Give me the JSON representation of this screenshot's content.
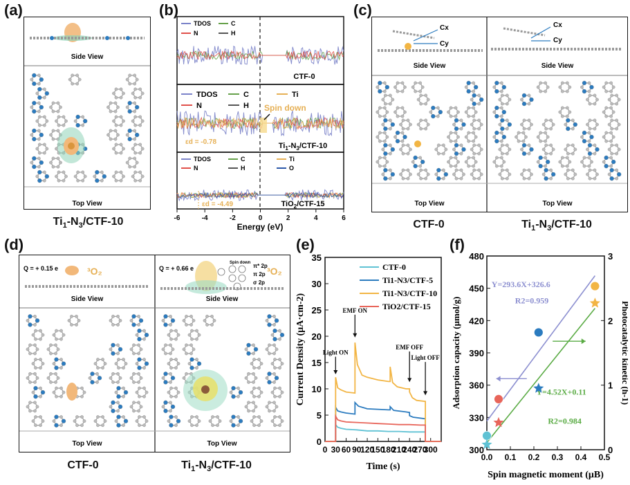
{
  "panels": {
    "a": {
      "label": "(a)",
      "side_view": "Side View",
      "top_view": "Top View",
      "caption": "Ti1-N3/CTF-10"
    },
    "b": {
      "label": "(b)",
      "xlabel": "Energy (eV)",
      "x_ticks": [
        "-6",
        "-4",
        "-2",
        "0",
        "2",
        "4",
        "6"
      ],
      "sub1": {
        "legend": [
          "TDOS",
          "C",
          "N",
          "H"
        ],
        "name": "CTF-0"
      },
      "sub2": {
        "legend": [
          "TDOS",
          "C",
          "Ti",
          "N",
          "H"
        ],
        "name": "Ti1-N3/CTF-10",
        "spin": "Spin down",
        "ed": "εd = -0.78"
      },
      "sub3": {
        "legend": [
          "TDOS",
          "C",
          "Ti",
          "N",
          "H",
          "O"
        ],
        "name": "TiO2/CTF-15",
        "ed": "εd = -4.49"
      }
    },
    "c": {
      "label": "(c)",
      "side_view": "Side View",
      "top_view": "Top View",
      "cx": "Cx",
      "cy": "Cy",
      "caption_left": "CTF-0",
      "caption_right": "Ti1-N3/CTF-10"
    },
    "d": {
      "label": "(d)",
      "q_left": "Q = + 0.15 e",
      "q_right": "Q = + 0.66 e",
      "o2": "3O2",
      "spin_down": "Spin down",
      "orbitals": [
        "π* 2p",
        "π 2p",
        "σ 2p"
      ],
      "side_view": "Side View",
      "top_view": "Top View",
      "caption_left": "CTF-0",
      "caption_right": "Ti1-N3/CTF-10"
    },
    "e": {
      "label": "(e)"
    },
    "f": {
      "label": "(f)"
    }
  },
  "colors": {
    "tdos": "#7b83c9",
    "c": "#66a14a",
    "ti": "#e6b055",
    "n": "#e0504a",
    "h": "#555555",
    "o": "#2b57a8",
    "ctf0": "#5fc2d4",
    "ctf5": "#2b7bbf",
    "ctf10": "#f2b544",
    "tio2": "#e8655a",
    "fit_blue": "#8c8fd0",
    "fit_green": "#5aab44"
  },
  "chart_data": [
    {
      "type": "line",
      "title": "",
      "xlabel": "Time (s)",
      "ylabel": "Current Density (μA·cm-2)",
      "xlim": [
        0,
        330
      ],
      "ylim": [
        0,
        35
      ],
      "x_ticks": [
        0,
        30,
        60,
        90,
        120,
        150,
        180,
        210,
        240,
        270,
        300
      ],
      "y_ticks": [
        0,
        5,
        10,
        15,
        20,
        25,
        30,
        35
      ],
      "legend": "top-right",
      "series": [
        {
          "name": "CTF-0",
          "color": "#5fc2d4",
          "x": [
            0,
            30,
            30,
            36,
            45,
            60,
            90,
            120,
            150,
            180,
            210,
            240,
            270,
            285,
            285,
            330
          ],
          "y": [
            0,
            0,
            3.2,
            2.7,
            2.5,
            2.3,
            2.2,
            2.0,
            2.0,
            1.9,
            1.9,
            1.8,
            1.8,
            1.8,
            0,
            0
          ]
        },
        {
          "name": "Ti1-N3/CTF-5",
          "color": "#2b7bbf",
          "x": [
            0,
            30,
            30,
            36,
            45,
            60,
            85,
            85,
            95,
            120,
            150,
            180,
            185,
            185,
            195,
            230,
            240,
            240,
            250,
            285,
            285,
            330
          ],
          "y": [
            0,
            0,
            6.5,
            5.8,
            5.6,
            5.4,
            5.2,
            7.4,
            6.7,
            6.2,
            6.1,
            6.0,
            6.0,
            6.6,
            5.9,
            5.6,
            5.5,
            4.9,
            4.6,
            4.3,
            0,
            0
          ]
        },
        {
          "name": "Ti1-N3/CTF-10",
          "color": "#f2b544",
          "x": [
            0,
            30,
            30,
            36,
            45,
            60,
            85,
            85,
            92,
            105,
            120,
            150,
            180,
            185,
            185,
            192,
            205,
            230,
            240,
            240,
            248,
            260,
            285,
            285,
            330
          ],
          "y": [
            0,
            0,
            12.2,
            10.2,
            9.8,
            9.4,
            9.2,
            18.8,
            14.6,
            12.6,
            12.2,
            11.7,
            11.4,
            11.4,
            14.2,
            11.2,
            10.4,
            10.0,
            10.0,
            9.4,
            8.3,
            7.8,
            7.6,
            0,
            0
          ]
        },
        {
          "name": "TiO2/CTF-15",
          "color": "#e8655a",
          "x": [
            0,
            30,
            30,
            36,
            45,
            60,
            90,
            120,
            150,
            180,
            210,
            240,
            270,
            285,
            285,
            330
          ],
          "y": [
            0,
            0,
            4.8,
            4.1,
            3.9,
            3.7,
            3.6,
            3.5,
            3.4,
            3.3,
            3.2,
            3.2,
            3.1,
            3.1,
            0,
            0
          ]
        }
      ],
      "annotations": [
        {
          "text": "Light ON",
          "x": 30,
          "y": 16.5,
          "target_y": 12.5
        },
        {
          "text": "EMF ON",
          "x": 85,
          "y": 24.5,
          "target_y": 19.5
        },
        {
          "text": "EMF OFF",
          "x": 240,
          "y": 17.5,
          "target_y": 11.0
        },
        {
          "text": "Light OFF",
          "x": 285,
          "y": 15.5,
          "target_y": 8.5
        }
      ]
    },
    {
      "type": "scatter",
      "title": "",
      "xlabel": "Spin magnetic moment (μB)",
      "ylabel_left": "Adsorption capacity (μmol/g)",
      "ylabel_right": "Photocatalytic kinetic (h-1)",
      "xlim": [
        0,
        0.5
      ],
      "ylim_left": [
        300,
        480
      ],
      "ylim_right": [
        0,
        3
      ],
      "x_ticks": [
        0.0,
        0.1,
        0.2,
        0.3,
        0.4,
        0.5
      ],
      "y_ticks_left": [
        300,
        330,
        360,
        390,
        420,
        450,
        480
      ],
      "y_ticks_right": [
        0,
        1,
        2,
        3
      ],
      "circles": {
        "axis": "left",
        "x": [
          0.0,
          0.05,
          0.22,
          0.46
        ],
        "y": [
          313,
          347,
          409,
          452
        ],
        "colors": [
          "#5fc2d4",
          "#e8655a",
          "#2b7bbf",
          "#f2b544"
        ]
      },
      "stars": {
        "axis": "right",
        "x": [
          0.0,
          0.05,
          0.22,
          0.46
        ],
        "y": [
          0.08,
          0.42,
          0.95,
          2.27
        ],
        "colors": [
          "#5fc2d4",
          "#e8655a",
          "#2b7bbf",
          "#f2b544"
        ]
      },
      "fits": [
        {
          "axis": "left",
          "equation": "Y=293.6X+326.6",
          "r2": "R2=0.959",
          "slope": 293.6,
          "intercept": 326.6,
          "color": "#8c8fd0"
        },
        {
          "axis": "right",
          "equation": "Y=4.52X+0.11",
          "r2": "R2=0.984",
          "slope": 4.52,
          "intercept": 0.11,
          "color": "#5aab44"
        }
      ]
    }
  ]
}
